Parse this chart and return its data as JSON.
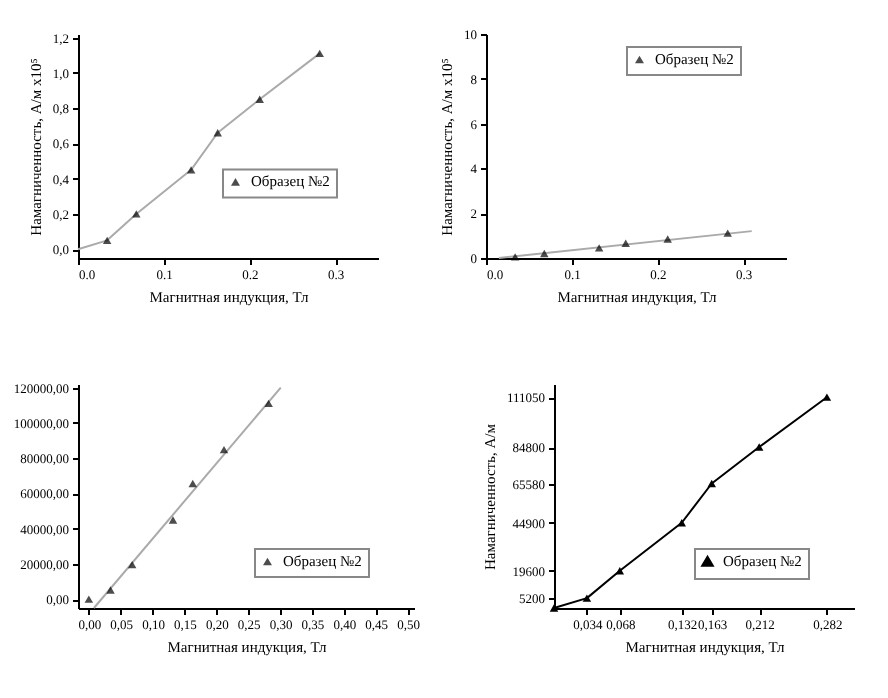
{
  "chart_data": [
    {
      "type": "scatter",
      "xlabel": "Магнитная индукция, Тл",
      "ylabel": "Намагниченность, А/м  x10⁵",
      "xlim": [
        0,
        0.35
      ],
      "ylim": [
        -0.05,
        1.22
      ],
      "xticks": [
        {
          "value": 0,
          "label": "0.0"
        },
        0.1,
        0.2,
        0.3
      ],
      "yticks": [
        {
          "value": 0,
          "label": "0,0"
        },
        {
          "value": 0.2,
          "label": "0,2"
        },
        {
          "value": 0.4,
          "label": "0,4"
        },
        {
          "value": 0.6,
          "label": "0,6"
        },
        {
          "value": 0.8,
          "label": "0,8"
        },
        {
          "value": 1,
          "label": "1,0"
        },
        {
          "value": 1.2,
          "label": "1,2"
        }
      ],
      "legend": "right",
      "series": [
        {
          "type": "line",
          "marker": "none",
          "color": "#aaaaaa",
          "x": [
            0,
            0.034,
            0.068,
            0.132,
            0.163,
            0.212,
            0.282
          ],
          "values": [
            0,
            0.05,
            0.2,
            0.45,
            0.66,
            0.85,
            1.11
          ]
        },
        {
          "name": "Образец №2",
          "marker": "triangle",
          "color": "#000000",
          "x": [
            0.034,
            0.068,
            0.132,
            0.163,
            0.212,
            0.282
          ],
          "values": [
            0.05,
            0.2,
            0.45,
            0.66,
            0.85,
            1.11
          ]
        }
      ]
    },
    {
      "type": "scatter",
      "xlabel": "Магнитная индукция, Тл",
      "ylabel": "Намагниченность, А/м  x10⁵",
      "xlim": [
        0,
        0.35
      ],
      "ylim": [
        0,
        10
      ],
      "xticks": [
        {
          "value": 0,
          "label": "0.0"
        },
        0.1,
        0.2,
        0.3
      ],
      "yticks": [
        0,
        2,
        4,
        6,
        8,
        10
      ],
      "legend": "top right",
      "series": [
        {
          "type": "line",
          "marker": "none",
          "color": "#aaaaaa",
          "x": [
            0.015,
            0.31
          ],
          "values": [
            0,
            1.2
          ]
        },
        {
          "name": "Образец №2",
          "marker": "triangle",
          "color": "#000000",
          "x": [
            0.034,
            0.068,
            0.132,
            0.163,
            0.212,
            0.282
          ],
          "values": [
            0.05,
            0.2,
            0.45,
            0.66,
            0.85,
            1.11
          ]
        }
      ]
    },
    {
      "type": "scatter",
      "xlabel": "Магнитная индукция, Тл",
      "xlim": [
        -0.017,
        0.51
      ],
      "ylim": [
        -5000,
        122000
      ],
      "xticks": [
        {
          "value": 0,
          "label": "0,00"
        },
        {
          "value": 0.05,
          "label": "0,05"
        },
        {
          "value": 0.1,
          "label": "0,10"
        },
        {
          "value": 0.15,
          "label": "0,15"
        },
        {
          "value": 0.2,
          "label": "0,20"
        },
        {
          "value": 0.25,
          "label": "0,25"
        },
        {
          "value": 0.3,
          "label": "0,30"
        },
        {
          "value": 0.35,
          "label": "0,35"
        },
        {
          "value": 0.4,
          "label": "0,40"
        },
        {
          "value": 0.45,
          "label": "0,45"
        },
        {
          "value": 0.5,
          "label": "0,50"
        }
      ],
      "yticks": [
        {
          "value": 0,
          "label": "0,00"
        },
        {
          "value": 20000,
          "label": "20000,00"
        },
        {
          "value": 40000,
          "label": "40000,00"
        },
        {
          "value": 60000,
          "label": "60000,00"
        },
        {
          "value": 80000,
          "label": "80000,00"
        },
        {
          "value": 100000,
          "label": "100000,00"
        },
        {
          "value": 120000,
          "label": "120000,00"
        }
      ],
      "legend": "bottom right",
      "series": [
        {
          "type": "line",
          "marker": "none",
          "color": "#aaaaaa",
          "x": [
            0.008,
            0.301
          ],
          "values": [
            -5000,
            120000
          ]
        },
        {
          "name": "Образец №2",
          "marker": "triangle",
          "color": "#000000",
          "x": [
            0,
            0.034,
            0.068,
            0.132,
            0.163,
            0.212,
            0.282
          ],
          "values": [
            0,
            5200,
            19600,
            44900,
            65580,
            84800,
            111050
          ]
        }
      ]
    },
    {
      "type": "line",
      "xlabel": "Магнитная индукция, Тл",
      "ylabel": "Намагниченность, А/м",
      "xlim": [
        0,
        0.31
      ],
      "ylim": [
        0,
        118000
      ],
      "xticks": [
        {
          "value": 0.034,
          "label": "0,034"
        },
        {
          "value": 0.068,
          "label": "0,068"
        },
        {
          "value": 0.132,
          "label": "0,132"
        },
        {
          "value": 0.163,
          "label": "0,163"
        },
        {
          "value": 0.212,
          "label": "0,212"
        },
        {
          "value": 0.282,
          "label": "0,282"
        }
      ],
      "yticks": [
        5200,
        19600,
        44900,
        65580,
        84800,
        111050
      ],
      "legend": "bottom right",
      "series": [
        {
          "name": "Образец №2",
          "marker": "triangle",
          "color": "#000000",
          "x": [
            0,
            0.034,
            0.068,
            0.132,
            0.163,
            0.212,
            0.282
          ],
          "values": [
            0,
            5200,
            19600,
            44900,
            65580,
            84800,
            111050
          ]
        }
      ]
    }
  ]
}
